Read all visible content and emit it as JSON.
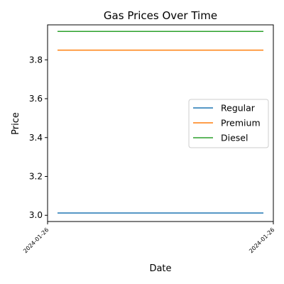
{
  "chart_data": {
    "type": "line",
    "title": "Gas Prices Over Time",
    "xlabel": "Date",
    "ylabel": "Price",
    "x": [
      "2024-01-26",
      "2024-01-26"
    ],
    "xticks": [
      "2024-01-26",
      "2024-01-26"
    ],
    "yticks": [
      3.0,
      3.2,
      3.4,
      3.6,
      3.8
    ],
    "ylim": [
      2.968,
      3.98
    ],
    "grid": false,
    "legend_position": "center-right",
    "series": [
      {
        "name": "Regular",
        "values": [
          3.012,
          3.012
        ],
        "color": "#1f77b4"
      },
      {
        "name": "Premium",
        "values": [
          3.85,
          3.85
        ],
        "color": "#ff7f0e"
      },
      {
        "name": "Diesel",
        "values": [
          3.946,
          3.946
        ],
        "color": "#2ca02c"
      }
    ]
  }
}
